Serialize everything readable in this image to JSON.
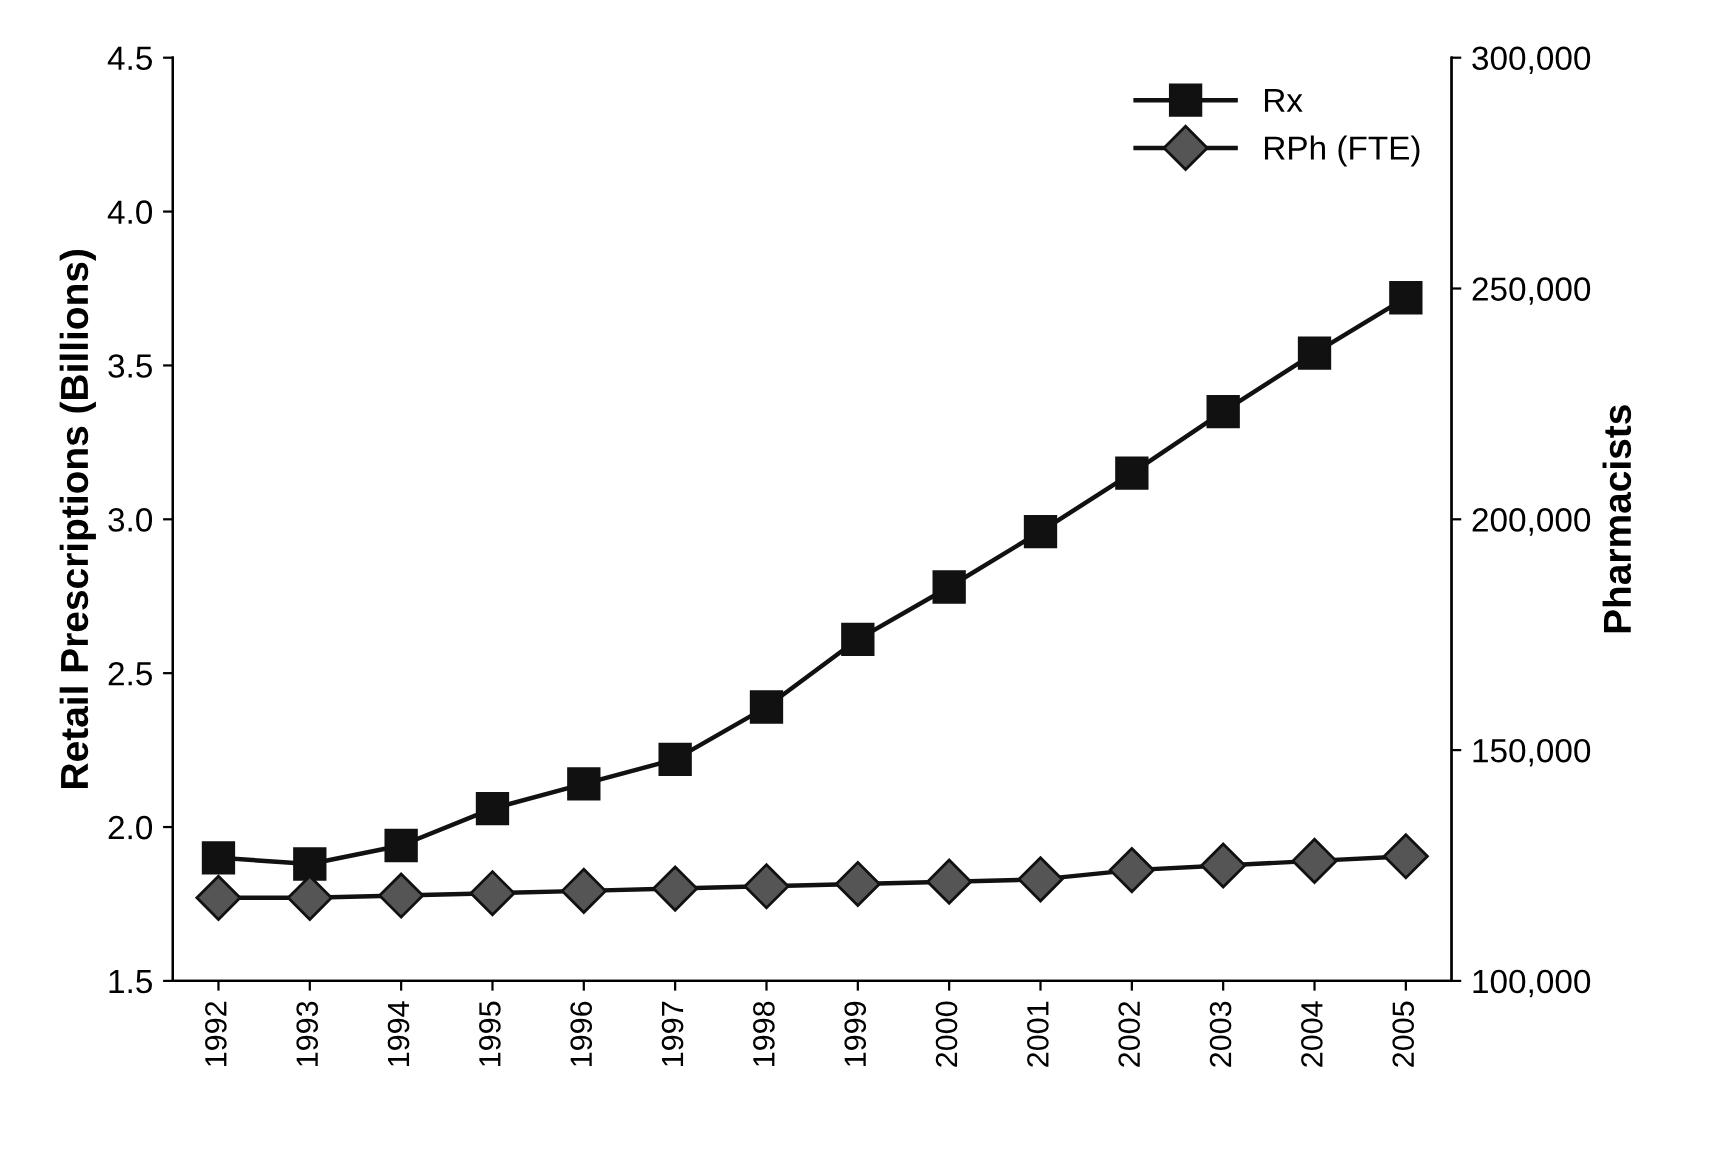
{
  "chart_data": {
    "type": "line",
    "categories": [
      "1992",
      "1993",
      "1994",
      "1995",
      "1996",
      "1997",
      "1998",
      "1999",
      "2000",
      "2001",
      "2002",
      "2003",
      "2004",
      "2005"
    ],
    "series": [
      {
        "name": "Rx",
        "color": "#111111",
        "marker": "square",
        "values": [
          1.9,
          1.88,
          1.94,
          2.06,
          2.14,
          2.22,
          2.39,
          2.61,
          2.78,
          2.96,
          3.15,
          3.35,
          3.54,
          3.72
        ]
      },
      {
        "name": "RPh (FTE)",
        "color": "#555555",
        "marker": "diamond",
        "axis": "y2",
        "values": [
          118000,
          118000,
          118500,
          119000,
          119500,
          120000,
          120500,
          121000,
          121500,
          122000,
          124000,
          125000,
          126000,
          127000
        ]
      }
    ],
    "ylabel": "Retail Prescriptions (Billions)",
    "y2label": "Pharmacists",
    "ylim": [
      1.5,
      4.5
    ],
    "yticks": [
      1.5,
      {
        "value": 2,
        "label": "2.0"
      },
      2.5,
      {
        "value": 3,
        "label": "3.0"
      },
      3.5,
      {
        "value": 4,
        "label": "4.0"
      },
      4.5
    ],
    "y2lim": [
      100000,
      300000
    ],
    "y2ticks": [
      {
        "value": 100000,
        "label": "100,000"
      },
      {
        "value": 150000,
        "label": "150,000"
      },
      {
        "value": 200000,
        "label": "200,000"
      },
      {
        "value": 250000,
        "label": "250,000"
      },
      {
        "value": 300000,
        "label": "300,000"
      }
    ],
    "legend": "top right",
    "grid": false,
    "line_style": "solid"
  }
}
